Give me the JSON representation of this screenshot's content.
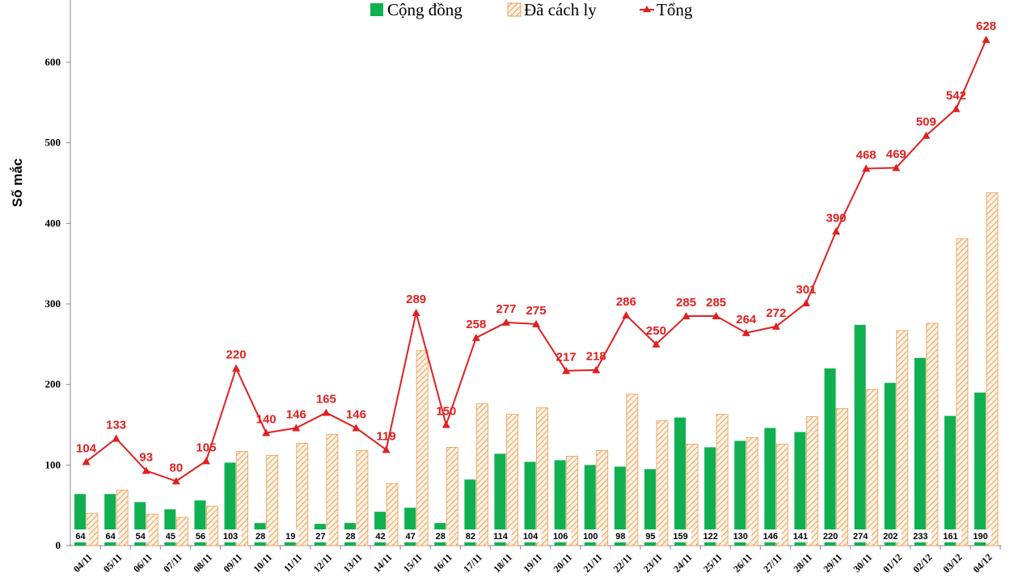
{
  "chart_data": {
    "type": "bar",
    "title": "",
    "xlabel": "",
    "ylabel": "Số mắc",
    "ylim": [
      0,
      600
    ],
    "yticks": [
      0,
      100,
      200,
      300,
      400,
      500,
      600
    ],
    "grid": false,
    "legend_position": "top",
    "categories": [
      "04/11",
      "05/11",
      "06/11",
      "07/11",
      "08/11",
      "09/11",
      "10/11",
      "11/11",
      "12/11",
      "13/11",
      "14/11",
      "15/11",
      "16/11",
      "17/11",
      "18/11",
      "19/11",
      "20/11",
      "21/11",
      "22/11",
      "23/11",
      "24/11",
      "25/11",
      "26/11",
      "27/11",
      "28/11",
      "29/11",
      "30/11",
      "01/12",
      "02/12",
      "03/12",
      "04/12"
    ],
    "series": [
      {
        "name": "Cộng đồng",
        "type": "bar",
        "color": "#10b050",
        "values": [
          64,
          64,
          54,
          45,
          56,
          103,
          28,
          19,
          27,
          28,
          42,
          47,
          28,
          82,
          114,
          104,
          106,
          100,
          98,
          95,
          159,
          122,
          130,
          146,
          141,
          220,
          274,
          202,
          233,
          161,
          190
        ]
      },
      {
        "name": "Đã cách ly",
        "type": "bar",
        "color": "#f0b070",
        "pattern": "diagonal-hatch",
        "values": [
          40,
          69,
          39,
          35,
          49,
          117,
          112,
          127,
          138,
          118,
          77,
          242,
          122,
          176,
          163,
          171,
          111,
          118,
          188,
          155,
          126,
          163,
          134,
          126,
          160,
          170,
          194,
          267,
          276,
          381,
          438
        ]
      },
      {
        "name": "Tổng",
        "type": "line",
        "color": "#e02020",
        "marker": "triangle",
        "values": [
          104,
          133,
          93,
          80,
          105,
          220,
          140,
          146,
          165,
          146,
          119,
          289,
          150,
          258,
          277,
          275,
          217,
          218,
          286,
          250,
          285,
          285,
          264,
          272,
          301,
          390,
          468,
          469,
          509,
          542,
          628
        ]
      }
    ]
  }
}
